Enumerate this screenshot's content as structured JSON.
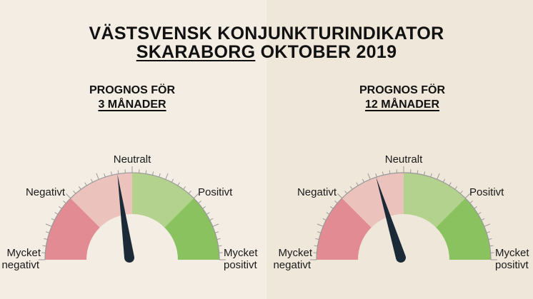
{
  "title": {
    "line1": "VÄSTSVENSK KONJUNKTURINDIKATOR",
    "region": "SKARABORG",
    "period": "OKTOBER 2019"
  },
  "colors": {
    "very_negative": "#e38b93",
    "negative": "#ecc2bd",
    "positive": "#b2d28e",
    "very_positive": "#89c25f",
    "needle": "#1c2a38",
    "ticks": "#999999"
  },
  "chart_data": [
    {
      "type": "gauge",
      "title_line1": "PROGNOS FÖR",
      "title_line2": "3 MÅNADER",
      "range": [
        -100,
        100
      ],
      "value": -9,
      "labels": {
        "very_negative": [
          "Mycket",
          "negativt"
        ],
        "negative": "Negativt",
        "neutral": "Neutralt",
        "positive": "Positivt",
        "very_positive": [
          "Mycket",
          "positivt"
        ]
      }
    },
    {
      "type": "gauge",
      "title_line1": "PROGNOS FÖR",
      "title_line2": "12 MÅNADER",
      "range": [
        -100,
        100
      ],
      "value": -19,
      "labels": {
        "very_negative": [
          "Mycket",
          "negativt"
        ],
        "negative": "Negativt",
        "neutral": "Neutralt",
        "positive": "Positivt",
        "very_positive": [
          "Mycket",
          "positivt"
        ]
      }
    }
  ]
}
